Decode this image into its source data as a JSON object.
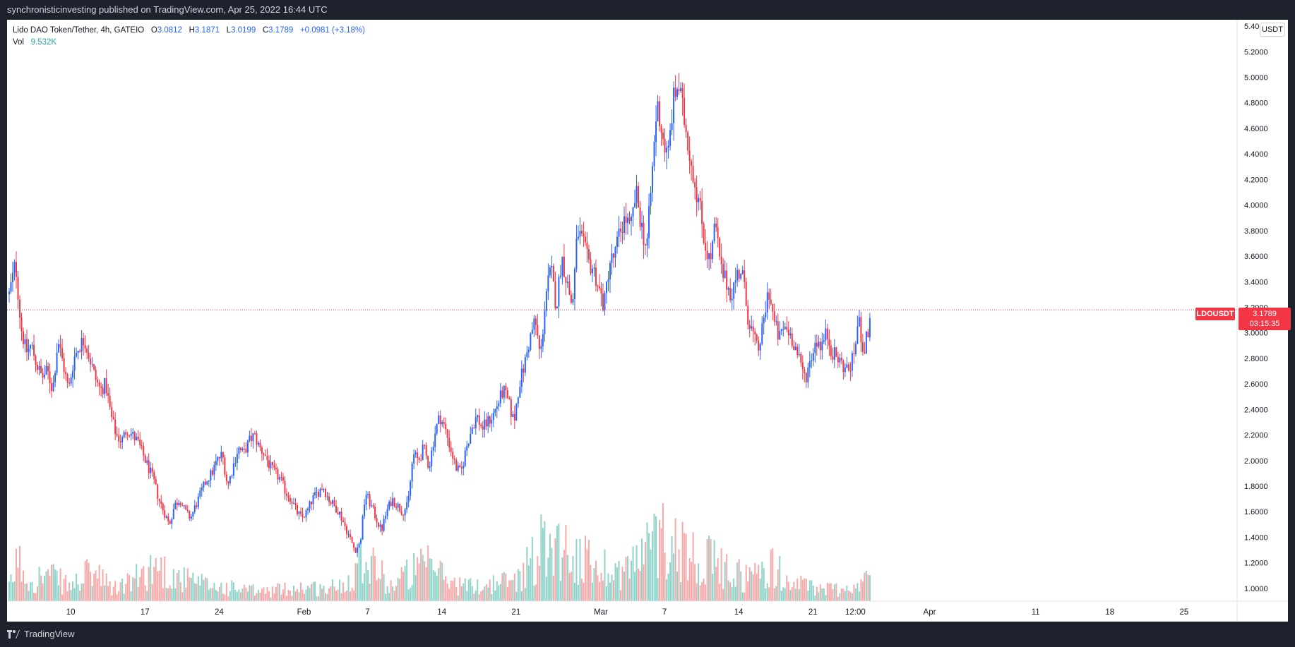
{
  "header": {
    "published": "synchronisticinvesting published on TradingView.com, Apr 25, 2022 16:44 UTC"
  },
  "legend": {
    "symbol": "Lido DAO Token/Tether, 4h, GATEIO",
    "open_label": "O",
    "open": "3.0812",
    "high_label": "H",
    "high": "3.1871",
    "low_label": "L",
    "low": "3.0199",
    "close_label": "C",
    "close": "3.1789",
    "change": "+0.0981 (+3.18%)",
    "vol_label": "Vol",
    "vol": "9.532K"
  },
  "price_scale": {
    "unit": "USDT",
    "last_symbol": "LDOUSDT",
    "last_price": "3.1789",
    "countdown": "03:15:35"
  },
  "footer": {
    "brand": "TradingView"
  },
  "colors": {
    "up": "#2962ff",
    "down": "#f23645",
    "vol_up": "#8fd3c9",
    "vol_down": "#f7a9a9",
    "axis_text": "#131722",
    "background": "#ffffff"
  },
  "chart_data": {
    "type": "candlestick",
    "interval": "4h",
    "ylim": [
      0.9,
      5.45
    ],
    "y_ticks": [
      "1.0000",
      "1.2000",
      "1.4000",
      "1.6000",
      "1.8000",
      "2.0000",
      "2.2000",
      "2.4000",
      "2.6000",
      "2.8000",
      "3.0000",
      "3.2000",
      "3.4000",
      "3.6000",
      "3.8000",
      "4.0000",
      "4.2000",
      "4.4000",
      "4.6000",
      "4.8000",
      "5.0000",
      "5.2000",
      "5.4000"
    ],
    "x_ticks": [
      {
        "label": "10",
        "x": 8
      },
      {
        "label": "17",
        "x": 15
      },
      {
        "label": "24",
        "x": 22
      },
      {
        "label": "Feb",
        "x": 30
      },
      {
        "label": "7",
        "x": 36
      },
      {
        "label": "14",
        "x": 43
      },
      {
        "label": "21",
        "x": 50
      },
      {
        "label": "Mar",
        "x": 58
      },
      {
        "label": "7",
        "x": 64
      },
      {
        "label": "14",
        "x": 71
      },
      {
        "label": "21",
        "x": 78
      },
      {
        "label": "12:00",
        "x": 82
      },
      {
        "label": "Apr",
        "x": 89
      },
      {
        "label": "11",
        "x": 99
      },
      {
        "label": "18",
        "x": 106
      },
      {
        "label": "25",
        "x": 113
      }
    ],
    "x_unit": "days since Jan 2, 2022",
    "x_range": [
      2,
      118
    ],
    "price_path": [
      [
        2.2,
        3.3
      ],
      [
        2.8,
        3.55
      ],
      [
        3.3,
        3.05
      ],
      [
        3.8,
        2.85
      ],
      [
        4.3,
        2.9
      ],
      [
        4.8,
        2.75
      ],
      [
        5.3,
        2.65
      ],
      [
        5.8,
        2.7
      ],
      [
        6.3,
        2.55
      ],
      [
        6.8,
        2.95
      ],
      [
        7.3,
        2.75
      ],
      [
        7.8,
        2.55
      ],
      [
        8.3,
        2.8
      ],
      [
        8.8,
        2.9
      ],
      [
        9.3,
        2.95
      ],
      [
        9.8,
        2.8
      ],
      [
        10.3,
        2.65
      ],
      [
        10.8,
        2.55
      ],
      [
        11.3,
        2.6
      ],
      [
        11.8,
        2.35
      ],
      [
        12.3,
        2.2
      ],
      [
        12.8,
        2.15
      ],
      [
        13.3,
        2.25
      ],
      [
        13.8,
        2.2
      ],
      [
        14.3,
        2.15
      ],
      [
        14.8,
        2.05
      ],
      [
        15.3,
        1.95
      ],
      [
        15.8,
        1.85
      ],
      [
        16.3,
        1.7
      ],
      [
        16.8,
        1.6
      ],
      [
        17.3,
        1.5
      ],
      [
        17.8,
        1.65
      ],
      [
        18.3,
        1.7
      ],
      [
        18.8,
        1.6
      ],
      [
        19.3,
        1.55
      ],
      [
        19.8,
        1.65
      ],
      [
        20.3,
        1.75
      ],
      [
        20.8,
        1.85
      ],
      [
        21.3,
        1.9
      ],
      [
        21.8,
        2.0
      ],
      [
        22.3,
        2.05
      ],
      [
        22.8,
        1.8
      ],
      [
        23.3,
        1.95
      ],
      [
        23.8,
        2.1
      ],
      [
        24.3,
        2.05
      ],
      [
        24.8,
        2.15
      ],
      [
        25.3,
        2.2
      ],
      [
        25.8,
        2.1
      ],
      [
        26.3,
        2.05
      ],
      [
        26.8,
        1.95
      ],
      [
        27.3,
        1.9
      ],
      [
        27.8,
        1.85
      ],
      [
        28.3,
        1.75
      ],
      [
        28.8,
        1.7
      ],
      [
        29.3,
        1.6
      ],
      [
        29.8,
        1.55
      ],
      [
        30.3,
        1.6
      ],
      [
        30.8,
        1.7
      ],
      [
        31.3,
        1.75
      ],
      [
        31.8,
        1.8
      ],
      [
        32.3,
        1.7
      ],
      [
        32.8,
        1.65
      ],
      [
        33.3,
        1.6
      ],
      [
        33.8,
        1.5
      ],
      [
        34.3,
        1.4
      ],
      [
        34.8,
        1.3
      ],
      [
        35.3,
        1.35
      ],
      [
        35.8,
        1.75
      ],
      [
        36.3,
        1.65
      ],
      [
        36.8,
        1.55
      ],
      [
        37.3,
        1.45
      ],
      [
        37.8,
        1.6
      ],
      [
        38.3,
        1.7
      ],
      [
        38.8,
        1.65
      ],
      [
        39.3,
        1.6
      ],
      [
        39.8,
        1.65
      ],
      [
        40.3,
        2.05
      ],
      [
        40.8,
        2.0
      ],
      [
        41.3,
        2.1
      ],
      [
        41.8,
        1.95
      ],
      [
        42.3,
        2.2
      ],
      [
        42.8,
        2.35
      ],
      [
        43.3,
        2.25
      ],
      [
        43.8,
        2.1
      ],
      [
        44.3,
        1.95
      ],
      [
        44.8,
        1.9
      ],
      [
        45.3,
        2.1
      ],
      [
        45.8,
        2.25
      ],
      [
        46.3,
        2.35
      ],
      [
        46.8,
        2.25
      ],
      [
        47.3,
        2.3
      ],
      [
        47.8,
        2.35
      ],
      [
        48.3,
        2.45
      ],
      [
        48.8,
        2.55
      ],
      [
        49.3,
        2.45
      ],
      [
        49.8,
        2.3
      ],
      [
        50.3,
        2.6
      ],
      [
        50.8,
        2.75
      ],
      [
        51.3,
        2.95
      ],
      [
        51.8,
        3.1
      ],
      [
        52.3,
        2.8
      ],
      [
        52.8,
        3.3
      ],
      [
        53.3,
        3.5
      ],
      [
        53.8,
        3.2
      ],
      [
        54.3,
        3.6
      ],
      [
        54.8,
        3.4
      ],
      [
        55.3,
        3.2
      ],
      [
        55.8,
        3.8
      ],
      [
        56.3,
        3.7
      ],
      [
        56.8,
        3.55
      ],
      [
        57.3,
        3.5
      ],
      [
        57.8,
        3.35
      ],
      [
        58.3,
        3.2
      ],
      [
        58.8,
        3.55
      ],
      [
        59.3,
        3.6
      ],
      [
        59.8,
        3.8
      ],
      [
        60.3,
        3.9
      ],
      [
        60.8,
        3.8
      ],
      [
        61.3,
        4.1
      ],
      [
        61.8,
        3.85
      ],
      [
        62.3,
        3.65
      ],
      [
        62.8,
        4.2
      ],
      [
        63.3,
        4.8
      ],
      [
        63.8,
        4.55
      ],
      [
        64.3,
        4.35
      ],
      [
        64.8,
        4.8
      ],
      [
        65.3,
        4.95
      ],
      [
        65.8,
        4.7
      ],
      [
        66.3,
        4.45
      ],
      [
        66.8,
        4.2
      ],
      [
        67.3,
        4.0
      ],
      [
        67.8,
        3.7
      ],
      [
        68.3,
        3.55
      ],
      [
        68.8,
        3.85
      ],
      [
        69.3,
        3.5
      ],
      [
        69.8,
        3.4
      ],
      [
        70.3,
        3.3
      ],
      [
        70.8,
        3.45
      ],
      [
        71.3,
        3.5
      ],
      [
        71.8,
        3.15
      ],
      [
        72.3,
        3.0
      ],
      [
        72.8,
        2.85
      ],
      [
        73.3,
        3.05
      ],
      [
        73.8,
        3.35
      ],
      [
        74.3,
        3.1
      ],
      [
        74.8,
        2.95
      ],
      [
        75.3,
        3.05
      ],
      [
        75.8,
        3.0
      ],
      [
        76.3,
        2.9
      ],
      [
        76.8,
        2.75
      ],
      [
        77.3,
        2.65
      ],
      [
        77.8,
        2.8
      ],
      [
        78.3,
        2.95
      ],
      [
        78.8,
        2.9
      ],
      [
        79.3,
        3.0
      ],
      [
        79.8,
        2.85
      ],
      [
        80.3,
        2.8
      ],
      [
        80.8,
        2.75
      ],
      [
        81.3,
        2.7
      ],
      [
        81.8,
        2.8
      ],
      [
        82.3,
        3.1
      ],
      [
        82.8,
        2.85
      ],
      [
        83.3,
        3.05
      ],
      [
        83.5,
        3.18
      ]
    ],
    "volume_path": [
      [
        2.2,
        0.1
      ],
      [
        3.0,
        0.35
      ],
      [
        4.0,
        0.18
      ],
      [
        6.0,
        0.22
      ],
      [
        8.0,
        0.12
      ],
      [
        10.0,
        0.25
      ],
      [
        12.0,
        0.1
      ],
      [
        14.0,
        0.18
      ],
      [
        16.0,
        0.3
      ],
      [
        18.0,
        0.2
      ],
      [
        20.0,
        0.15
      ],
      [
        22.0,
        0.12
      ],
      [
        24.0,
        0.1
      ],
      [
        26.0,
        0.08
      ],
      [
        28.0,
        0.1
      ],
      [
        30.0,
        0.12
      ],
      [
        32.0,
        0.1
      ],
      [
        34.0,
        0.15
      ],
      [
        35.5,
        0.4
      ],
      [
        36.5,
        0.35
      ],
      [
        38.0,
        0.12
      ],
      [
        40.0,
        0.25
      ],
      [
        42.0,
        0.3
      ],
      [
        44.0,
        0.15
      ],
      [
        46.0,
        0.12
      ],
      [
        48.0,
        0.15
      ],
      [
        50.0,
        0.18
      ],
      [
        51.5,
        0.35
      ],
      [
        53.0,
        0.55
      ],
      [
        54.5,
        0.45
      ],
      [
        56.0,
        0.35
      ],
      [
        58.0,
        0.3
      ],
      [
        60.0,
        0.25
      ],
      [
        62.0,
        0.4
      ],
      [
        63.5,
        0.55
      ],
      [
        65.0,
        0.5
      ],
      [
        66.5,
        0.4
      ],
      [
        68.0,
        0.35
      ],
      [
        70.0,
        0.25
      ],
      [
        72.0,
        0.2
      ],
      [
        74.0,
        0.3
      ],
      [
        76.0,
        0.15
      ],
      [
        78.0,
        0.12
      ],
      [
        80.0,
        0.1
      ],
      [
        82.0,
        0.12
      ],
      [
        83.5,
        0.2
      ]
    ]
  }
}
